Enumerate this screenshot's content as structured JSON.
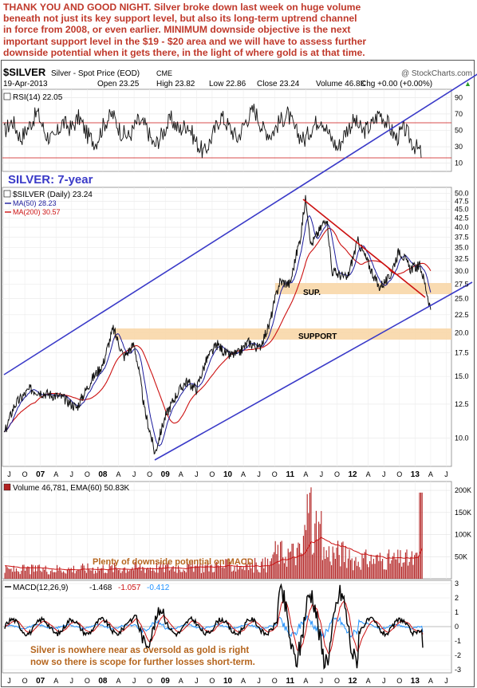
{
  "headline": {
    "lines": [
      "THANK YOU AND GOOD NIGHT.  Silver broke down last week on huge volume",
      "beneath not just its key support level, but also its long-term uptrend channel",
      "in force from 2008, or even earlier. MINIMUM downside objective is the next",
      "important support level in the $19 - $20 area and we will have to assess further",
      "downside potential when it gets there, in the light of where gold is at that time."
    ]
  },
  "header": {
    "symbol": "$SILVER",
    "name": "Silver - Spot Price (EOD)",
    "exchange": "CME",
    "credit": "@ StockCharts.com",
    "date": "19-Apr-2013",
    "open": "Open 23.25",
    "high": "High 23.82",
    "low": "Low 22.86",
    "close": "Close 23.24",
    "volume": "Volume 46.8K",
    "change": "Chg +0.00 (+0.00%)",
    "change_arrow": "▲"
  },
  "chart_data": [
    {
      "type": "line",
      "panel": "rsi",
      "title": "RSI(14) 22.05",
      "current": 22.05,
      "ylim": [
        0,
        100
      ],
      "ytick_labels": [
        "90",
        "70",
        "50",
        "30",
        "10"
      ],
      "reference_levels": [
        70,
        50,
        30
      ],
      "values_approx": [
        48,
        62,
        40,
        55,
        72,
        45,
        38,
        60,
        52,
        66,
        44,
        35,
        58,
        70,
        48,
        42,
        61,
        55,
        30,
        46,
        64,
        50,
        58,
        36,
        22,
        44,
        68,
        54,
        40,
        62,
        76,
        52,
        45,
        60,
        70,
        48,
        38,
        55,
        66,
        44,
        28,
        50,
        62,
        48,
        56,
        72,
        58,
        40,
        52,
        34,
        22
      ]
    },
    {
      "type": "line",
      "panel": "price",
      "title": "SILVER: 7-year",
      "series_labels": {
        "price": "$SILVER (Daily) 23.24",
        "ma50": "MA(50) 28.23",
        "ma200": "MA(200) 30.57"
      },
      "colors": {
        "price": "#111111",
        "ma50": "#1a1a9c",
        "ma200": "#cc1111",
        "channel": "#3a3ac8",
        "trend": "#cc1111",
        "zone": "#f8d7a8"
      },
      "yscale": "log",
      "ylim": [
        8.3,
        52
      ],
      "ytick_labels": [
        "50.0",
        "47.5",
        "45.0",
        "42.5",
        "40.0",
        "37.5",
        "35.0",
        "32.5",
        "30.0",
        "27.5",
        "25.0",
        "22.5",
        "20.0",
        "17.5",
        "15.0",
        "12.5",
        "10.0"
      ],
      "x_labels": [
        "J",
        "O",
        "07",
        "A",
        "J",
        "O",
        "08",
        "A",
        "J",
        "O",
        "09",
        "A",
        "J",
        "O",
        "10",
        "A",
        "J",
        "O",
        "11",
        "A",
        "J",
        "O",
        "12",
        "A",
        "J",
        "O",
        "13",
        "A",
        "J"
      ],
      "x_label_dates": [
        "2006-07",
        "2006-10",
        "2007-01",
        "2007-04",
        "2007-07",
        "2007-10",
        "2008-01",
        "2008-04",
        "2008-07",
        "2008-10",
        "2009-01",
        "2009-04",
        "2009-07",
        "2009-10",
        "2010-01",
        "2010-04",
        "2010-07",
        "2010-10",
        "2011-01",
        "2011-04",
        "2011-07",
        "2011-10",
        "2012-01",
        "2012-04",
        "2012-07",
        "2012-10",
        "2013-01",
        "2013-04",
        "2013-07"
      ],
      "price_approx": [
        {
          "x": "2006-06",
          "y": 10.2
        },
        {
          "x": "2006-08",
          "y": 12.4
        },
        {
          "x": "2006-11",
          "y": 13.8
        },
        {
          "x": "2007-02",
          "y": 13.4
        },
        {
          "x": "2007-05",
          "y": 13.1
        },
        {
          "x": "2007-08",
          "y": 12.2
        },
        {
          "x": "2007-11",
          "y": 14.8
        },
        {
          "x": "2008-01",
          "y": 16.2
        },
        {
          "x": "2008-03",
          "y": 20.5
        },
        {
          "x": "2008-05",
          "y": 17.0
        },
        {
          "x": "2008-07",
          "y": 18.5
        },
        {
          "x": "2008-09",
          "y": 12.0
        },
        {
          "x": "2008-11",
          "y": 9.0
        },
        {
          "x": "2009-01",
          "y": 11.5
        },
        {
          "x": "2009-03",
          "y": 13.2
        },
        {
          "x": "2009-05",
          "y": 14.5
        },
        {
          "x": "2009-07",
          "y": 13.8
        },
        {
          "x": "2009-09",
          "y": 16.8
        },
        {
          "x": "2009-11",
          "y": 18.5
        },
        {
          "x": "2010-01",
          "y": 17.2
        },
        {
          "x": "2010-03",
          "y": 17.4
        },
        {
          "x": "2010-05",
          "y": 18.8
        },
        {
          "x": "2010-07",
          "y": 18.0
        },
        {
          "x": "2010-09",
          "y": 21.0
        },
        {
          "x": "2010-11",
          "y": 28.0
        },
        {
          "x": "2011-01",
          "y": 27.5
        },
        {
          "x": "2011-03",
          "y": 37.5
        },
        {
          "x": "2011-04",
          "y": 48.5
        },
        {
          "x": "2011-05",
          "y": 35.5
        },
        {
          "x": "2011-07",
          "y": 40.0
        },
        {
          "x": "2011-08",
          "y": 43.0
        },
        {
          "x": "2011-09",
          "y": 30.0
        },
        {
          "x": "2011-12",
          "y": 28.5
        },
        {
          "x": "2012-02",
          "y": 36.5
        },
        {
          "x": "2012-04",
          "y": 31.5
        },
        {
          "x": "2012-06",
          "y": 27.0
        },
        {
          "x": "2012-08",
          "y": 28.5
        },
        {
          "x": "2012-10",
          "y": 34.5
        },
        {
          "x": "2012-12",
          "y": 30.5
        },
        {
          "x": "2013-02",
          "y": 31.0
        },
        {
          "x": "2013-04",
          "y": 23.24
        }
      ],
      "annotations": [
        {
          "text": "SUP.",
          "zone": [
            26.3,
            28.0
          ]
        },
        {
          "text": "SUPPORT",
          "zone": [
            19.5,
            20.7
          ]
        }
      ]
    },
    {
      "type": "bar",
      "panel": "volume",
      "title": "Volume 46,781, EMA(60) 50.83K",
      "ytick_labels": [
        "200K",
        "150K",
        "100K",
        "50K"
      ],
      "ylim": [
        0,
        220000
      ],
      "annotation": "Plenty of downside potential on MACD",
      "colors": {
        "bars": "#b22222",
        "ema": "#cc1111"
      }
    },
    {
      "type": "line",
      "panel": "macd",
      "title": "MACD(12,26,9)",
      "legend": [
        {
          "label": "-1.468",
          "color": "#000000"
        },
        {
          "label": "-1.057",
          "color": "#cc1111"
        },
        {
          "label": "-0.412",
          "color": "#1e90ff"
        }
      ],
      "ytick_labels": [
        "3",
        "2",
        "1",
        "0",
        "-1",
        "-2",
        "-3"
      ],
      "ylim": [
        -3,
        3
      ],
      "annotation_lines": [
        "Silver is nowhere near as oversold as gold is right",
        "now so there is scope for further losses short-term."
      ]
    }
  ]
}
